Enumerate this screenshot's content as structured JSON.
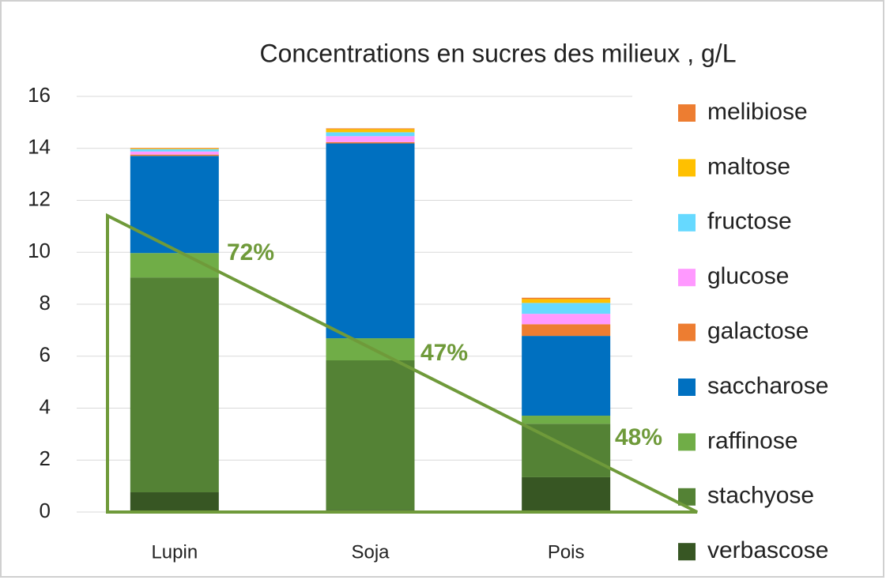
{
  "chart_data": {
    "type": "stacked_bar",
    "title": "Concentrations en sucres des milieux , g/L",
    "categories": [
      "Lupin",
      "Soja",
      "Pois"
    ],
    "series": [
      {
        "name": "verbascose",
        "color": "#375623",
        "values": [
          0.76,
          0.08,
          1.34
        ]
      },
      {
        "name": "stachyose",
        "color": "#548235",
        "values": [
          8.27,
          5.76,
          2.06
        ]
      },
      {
        "name": "raffinose",
        "color": "#70ad47",
        "values": [
          0.94,
          0.85,
          0.31
        ]
      },
      {
        "name": "saccharose",
        "color": "#0070c0",
        "values": [
          3.74,
          7.5,
          3.07
        ]
      },
      {
        "name": "galactose",
        "color": "#ed7d31",
        "values": [
          0.05,
          0.05,
          0.45
        ]
      },
      {
        "name": "glucose",
        "color": "#ff99ff",
        "values": [
          0.12,
          0.23,
          0.4
        ]
      },
      {
        "name": "fructose",
        "color": "#66d9ff",
        "values": [
          0.09,
          0.15,
          0.42
        ]
      },
      {
        "name": "maltose",
        "color": "#ffc000",
        "values": [
          0.03,
          0.12,
          0.15
        ]
      },
      {
        "name": "melibiose",
        "color": "#ed7d31",
        "values": [
          0.02,
          0.03,
          0.05
        ]
      }
    ],
    "ylim": [
      0,
      16
    ],
    "yticks": [
      0,
      2,
      4,
      6,
      8,
      10,
      12,
      14,
      16
    ],
    "grid": true,
    "legend": "right",
    "annotations": [
      "72%",
      "47%",
      "48%"
    ]
  }
}
